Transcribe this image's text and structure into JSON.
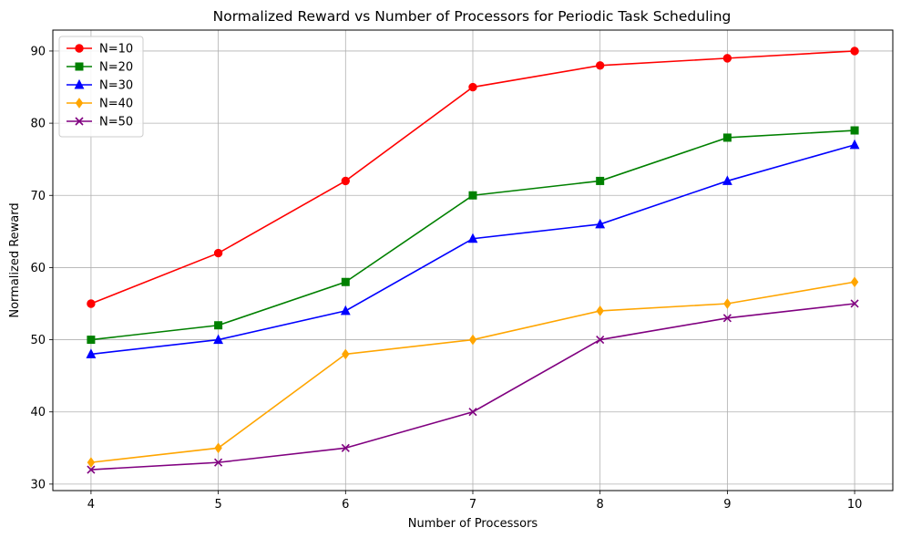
{
  "chart_data": {
    "type": "line",
    "title": "Normalized Reward vs Number of Processors for Periodic Task Scheduling",
    "xlabel": "Number of Processors",
    "ylabel": "Normalized Reward",
    "x": [
      4,
      5,
      6,
      7,
      8,
      9,
      10
    ],
    "xlim": [
      3.7,
      10.3
    ],
    "ylim": [
      29.1,
      92.9
    ],
    "yticks": [
      30,
      40,
      50,
      60,
      70,
      80,
      90
    ],
    "grid": true,
    "legend_position": "top-left",
    "series": [
      {
        "name": "N=10",
        "color": "#ff0000",
        "marker": "circle",
        "values": [
          55,
          62,
          72,
          85,
          88,
          89,
          90
        ]
      },
      {
        "name": "N=20",
        "color": "#008000",
        "marker": "square",
        "values": [
          50,
          52,
          58,
          70,
          72,
          78,
          79
        ]
      },
      {
        "name": "N=30",
        "color": "#0000ff",
        "marker": "triangle",
        "values": [
          48,
          50,
          54,
          64,
          66,
          72,
          77
        ]
      },
      {
        "name": "N=40",
        "color": "#ffa500",
        "marker": "diamond",
        "values": [
          33,
          35,
          48,
          50,
          54,
          55,
          58
        ]
      },
      {
        "name": "N=50",
        "color": "#800080",
        "marker": "x",
        "values": [
          32,
          33,
          35,
          40,
          50,
          53,
          55
        ]
      }
    ]
  }
}
